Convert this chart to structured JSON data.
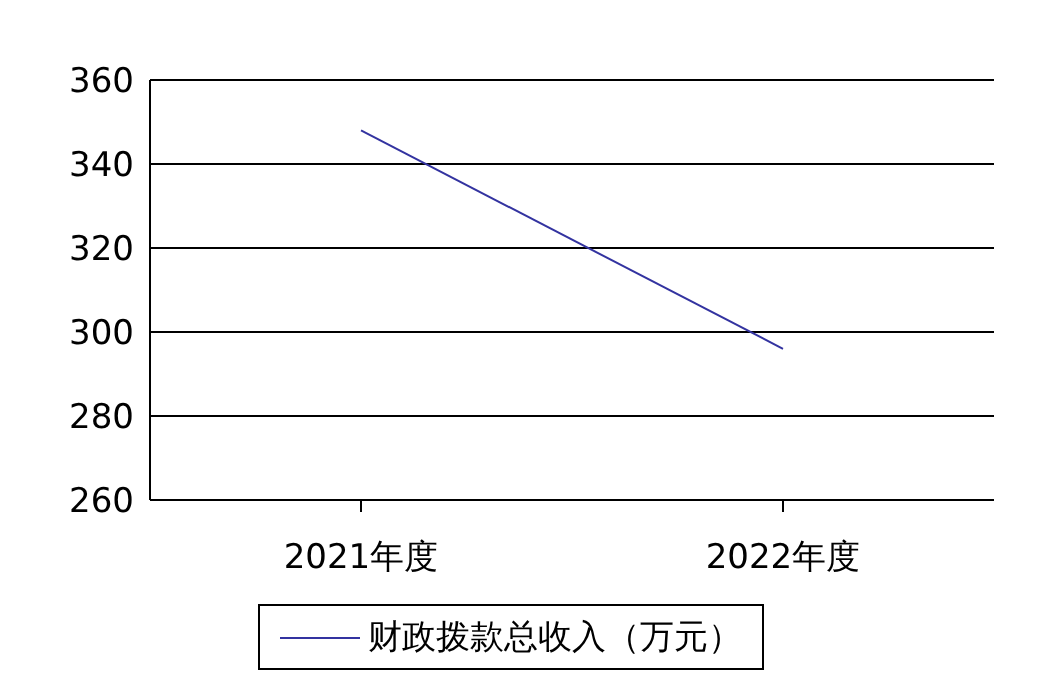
{
  "chart_data": {
    "type": "line",
    "categories": [
      "2021年度",
      "2022年度"
    ],
    "series": [
      {
        "name": "财政拨款总收入（万元）",
        "color": "#3333a0",
        "values": [
          348,
          296
        ]
      }
    ],
    "ylim": [
      260,
      360
    ],
    "yticks": [
      260,
      280,
      300,
      320,
      340,
      360
    ],
    "grid": "y",
    "legend": "bottom",
    "marker": "none",
    "line_style": "solid"
  }
}
